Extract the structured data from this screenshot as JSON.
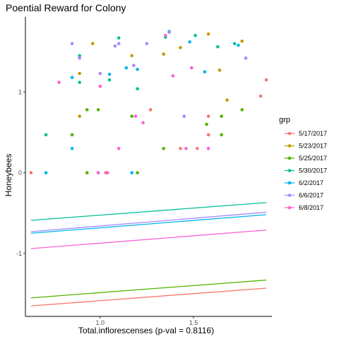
{
  "chart_data": {
    "type": "scatter",
    "title": "Poential Reward for Colony",
    "xlabel": "Total.inflorescenses (p-val = 0.8116)",
    "ylabel": "Honeybees",
    "xlim": [
      0.6,
      1.92
    ],
    "ylim": [
      -1.78,
      1.93
    ],
    "x_ticks": [
      1.0,
      1.5
    ],
    "x_tick_labels": [
      "1.0",
      "1.5"
    ],
    "y_ticks": [
      -1,
      0,
      1
    ],
    "y_tick_labels": [
      "-1",
      "0",
      "1"
    ],
    "grid": false,
    "legend": {
      "title": "grp",
      "position": "right"
    },
    "series": [
      {
        "name": "5/17/2017",
        "color": "#F8766D",
        "points": [
          [
            0.63,
            0.0
          ],
          [
            0.85,
            0.47
          ],
          [
            1.0,
            1.07
          ],
          [
            1.03,
            0.0
          ],
          [
            1.27,
            0.78
          ],
          [
            1.43,
            0.3
          ],
          [
            1.52,
            0.3
          ],
          [
            1.58,
            0.47
          ],
          [
            1.58,
            0.7
          ],
          [
            1.86,
            0.95
          ],
          [
            1.89,
            1.15
          ]
        ],
        "fit": [
          [
            0.63,
            -1.65
          ],
          [
            1.89,
            -1.43
          ]
        ]
      },
      {
        "name": "5/23/2017",
        "color": "#C49A00",
        "points": [
          [
            0.89,
            0.7
          ],
          [
            0.89,
            1.23
          ],
          [
            0.96,
            1.6
          ],
          [
            1.17,
            1.45
          ],
          [
            1.34,
            1.47
          ],
          [
            1.43,
            1.55
          ],
          [
            1.58,
            1.72
          ],
          [
            1.64,
            1.27
          ],
          [
            1.68,
            0.9
          ],
          [
            1.76,
            1.63
          ]
        ],
        "fit": []
      },
      {
        "name": "5/25/2017",
        "color": "#53B400",
        "points": [
          [
            0.85,
            0.47
          ],
          [
            0.93,
            0.0
          ],
          [
            0.93,
            0.78
          ],
          [
            0.99,
            0.78
          ],
          [
            1.17,
            0.7
          ],
          [
            1.2,
            0.0
          ],
          [
            1.34,
            0.3
          ],
          [
            1.57,
            0.6
          ],
          [
            1.65,
            0.7
          ],
          [
            1.65,
            0.47
          ],
          [
            1.76,
            0.78
          ]
        ],
        "fit": [
          [
            0.63,
            -1.55
          ],
          [
            1.89,
            -1.33
          ]
        ]
      },
      {
        "name": "5/30/2017",
        "color": "#00C094",
        "points": [
          [
            0.71,
            0.47
          ],
          [
            0.89,
            1.45
          ],
          [
            0.89,
            1.12
          ],
          [
            1.05,
            1.15
          ],
          [
            1.1,
            1.67
          ],
          [
            1.2,
            1.04
          ],
          [
            1.35,
            1.68
          ],
          [
            1.51,
            1.7
          ],
          [
            1.63,
            1.56
          ],
          [
            1.72,
            1.6
          ]
        ],
        "fit": [
          [
            0.63,
            -0.59
          ],
          [
            1.89,
            -0.37
          ]
        ]
      },
      {
        "name": "6/2/2017",
        "color": "#00B6EB",
        "points": [
          [
            0.71,
            0.0
          ],
          [
            0.85,
            0.3
          ],
          [
            0.85,
            1.18
          ],
          [
            1.05,
            1.22
          ],
          [
            1.14,
            1.3
          ],
          [
            1.17,
            0.0
          ],
          [
            1.2,
            1.28
          ],
          [
            1.37,
            1.75
          ],
          [
            1.48,
            1.62
          ],
          [
            1.56,
            1.25
          ],
          [
            1.74,
            1.58
          ]
        ],
        "fit": [
          [
            0.63,
            -0.75
          ],
          [
            1.89,
            -0.52
          ]
        ]
      },
      {
        "name": "6/6/2017",
        "color": "#A58AFF",
        "points": [
          [
            0.85,
            1.6
          ],
          [
            0.89,
            1.42
          ],
          [
            0.99,
            0.0
          ],
          [
            1.0,
            1.23
          ],
          [
            1.08,
            1.57
          ],
          [
            1.1,
            1.6
          ],
          [
            1.18,
            1.33
          ],
          [
            1.25,
            1.6
          ],
          [
            1.37,
            1.74
          ],
          [
            1.45,
            0.7
          ],
          [
            1.78,
            1.42
          ]
        ],
        "fit": [
          [
            0.63,
            -0.73
          ],
          [
            1.89,
            -0.49
          ]
        ]
      },
      {
        "name": "6/8/2017",
        "color": "#FB61D7",
        "points": [
          [
            0.78,
            1.12
          ],
          [
            0.99,
            0.0
          ],
          [
            1.0,
            1.07
          ],
          [
            1.04,
            0.0
          ],
          [
            1.1,
            0.3
          ],
          [
            1.19,
            0.7
          ],
          [
            1.23,
            0.62
          ],
          [
            1.35,
            1.7
          ],
          [
            1.39,
            1.2
          ],
          [
            1.46,
            0.3
          ],
          [
            1.49,
            1.3
          ],
          [
            1.58,
            0.3
          ]
        ],
        "fit": [
          [
            0.63,
            -0.94
          ],
          [
            1.89,
            -0.71
          ]
        ]
      }
    ]
  }
}
